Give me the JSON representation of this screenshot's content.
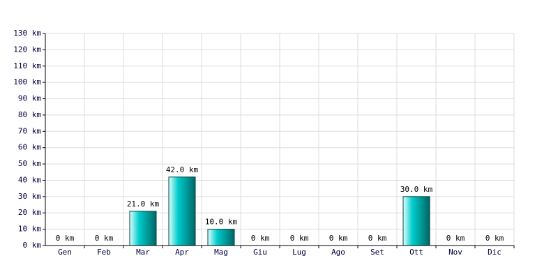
{
  "chart_data": {
    "type": "bar",
    "categories": [
      "Gen",
      "Feb",
      "Mar",
      "Apr",
      "Mag",
      "Giu",
      "Lug",
      "Ago",
      "Set",
      "Ott",
      "Nov",
      "Dic"
    ],
    "values": [
      0,
      0,
      21,
      42,
      10,
      0,
      0,
      0,
      0,
      30,
      0,
      0
    ],
    "value_labels": [
      "0 km",
      "0 km",
      "21.0 km",
      "42.0 km",
      "10.0 km",
      "0 km",
      "0 km",
      "0 km",
      "0 km",
      "30.0 km",
      "0 km",
      "0 km"
    ],
    "color": "#00cccc",
    "ylim": [
      0,
      130
    ],
    "yticks": [
      {
        "value": 0,
        "label": "0 km"
      },
      {
        "value": 10,
        "label": "10 km"
      },
      {
        "value": 20,
        "label": "20 km"
      },
      {
        "value": 30,
        "label": "30 km"
      },
      {
        "value": 40,
        "label": "40 km"
      },
      {
        "value": 50,
        "label": "50 km"
      },
      {
        "value": 60,
        "label": "60 km"
      },
      {
        "value": 70,
        "label": "70 km"
      },
      {
        "value": 80,
        "label": "80 km"
      },
      {
        "value": 90,
        "label": "90 km"
      },
      {
        "value": 100,
        "label": "100 km"
      },
      {
        "value": 110,
        "label": "110 km"
      },
      {
        "value": 120,
        "label": "120 km"
      },
      {
        "value": 130,
        "label": "130 km"
      }
    ],
    "grid": true
  }
}
